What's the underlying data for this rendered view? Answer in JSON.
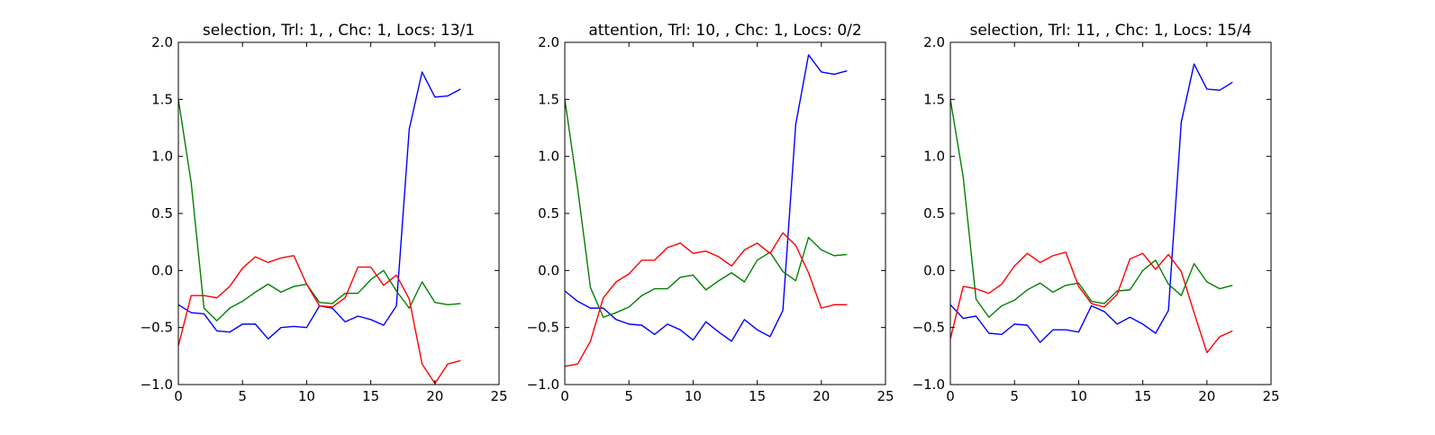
{
  "chart_data": [
    {
      "type": "line",
      "title": "selection, Trl: 1, , Chc: 1, Locs: 13/1",
      "xlim": [
        0,
        25
      ],
      "ylim": [
        -1.0,
        2.0
      ],
      "xticks": [
        "0",
        "5",
        "10",
        "15",
        "20",
        "25"
      ],
      "yticks": [
        "−1.0",
        "−0.5",
        "0.0",
        "0.5",
        "1.0",
        "1.5",
        "2.0"
      ],
      "x": [
        0,
        1,
        2,
        3,
        4,
        5,
        6,
        7,
        8,
        9,
        10,
        11,
        12,
        13,
        14,
        15,
        16,
        17,
        18,
        19,
        20,
        21,
        22
      ],
      "series": [
        {
          "color": "#0000ff",
          "values": [
            -0.3,
            -0.37,
            -0.38,
            -0.53,
            -0.54,
            -0.47,
            -0.47,
            -0.6,
            -0.5,
            -0.49,
            -0.5,
            -0.31,
            -0.33,
            -0.45,
            -0.4,
            -0.43,
            -0.48,
            -0.31,
            1.24,
            1.74,
            1.52,
            1.53,
            1.59
          ]
        },
        {
          "color": "#008000",
          "values": [
            1.5,
            0.77,
            -0.33,
            -0.44,
            -0.33,
            -0.27,
            -0.19,
            -0.12,
            -0.19,
            -0.14,
            -0.12,
            -0.28,
            -0.29,
            -0.2,
            -0.2,
            -0.08,
            0.0,
            -0.18,
            -0.33,
            -0.1,
            -0.28,
            -0.3,
            -0.29
          ]
        },
        {
          "color": "#ff0000",
          "values": [
            -0.66,
            -0.22,
            -0.22,
            -0.24,
            -0.14,
            0.02,
            0.12,
            0.07,
            0.11,
            0.13,
            -0.12,
            -0.31,
            -0.32,
            -0.24,
            0.03,
            0.03,
            -0.13,
            -0.04,
            -0.25,
            -0.82,
            -0.99,
            -0.82,
            -0.79
          ]
        }
      ]
    },
    {
      "type": "line",
      "title": "attention, Trl: 10, , Chc: 1, Locs: 0/2",
      "xlim": [
        0,
        25
      ],
      "ylim": [
        -1.0,
        2.0
      ],
      "xticks": [
        "0",
        "5",
        "10",
        "15",
        "20",
        "25"
      ],
      "yticks": [
        "−1.0",
        "−0.5",
        "0.0",
        "0.5",
        "1.0",
        "1.5",
        "2.0"
      ],
      "x": [
        0,
        1,
        2,
        3,
        4,
        5,
        6,
        7,
        8,
        9,
        10,
        11,
        12,
        13,
        14,
        15,
        16,
        17,
        18,
        19,
        20,
        21,
        22
      ],
      "series": [
        {
          "color": "#0000ff",
          "values": [
            -0.18,
            -0.27,
            -0.33,
            -0.33,
            -0.43,
            -0.47,
            -0.48,
            -0.56,
            -0.47,
            -0.52,
            -0.61,
            -0.45,
            -0.54,
            -0.62,
            -0.43,
            -0.52,
            -0.58,
            -0.35,
            1.28,
            1.89,
            1.74,
            1.72,
            1.75
          ]
        },
        {
          "color": "#008000",
          "values": [
            1.5,
            0.72,
            -0.15,
            -0.41,
            -0.37,
            -0.32,
            -0.22,
            -0.16,
            -0.16,
            -0.06,
            -0.04,
            -0.17,
            -0.09,
            -0.02,
            -0.1,
            0.09,
            0.16,
            -0.01,
            -0.09,
            0.29,
            0.18,
            0.13,
            0.14
          ]
        },
        {
          "color": "#ff0000",
          "values": [
            -0.84,
            -0.82,
            -0.62,
            -0.24,
            -0.1,
            -0.03,
            0.09,
            0.09,
            0.2,
            0.24,
            0.15,
            0.17,
            0.12,
            0.04,
            0.18,
            0.24,
            0.15,
            0.33,
            0.22,
            -0.02,
            -0.33,
            -0.3,
            -0.3
          ]
        }
      ]
    },
    {
      "type": "line",
      "title": "selection, Trl: 11, , Chc: 1, Locs: 15/4",
      "xlim": [
        0,
        25
      ],
      "ylim": [
        -1.0,
        2.0
      ],
      "xticks": [
        "0",
        "5",
        "10",
        "15",
        "20",
        "25"
      ],
      "yticks": [
        "−1.0",
        "−0.5",
        "0.0",
        "0.5",
        "1.0",
        "1.5",
        "2.0"
      ],
      "x": [
        0,
        1,
        2,
        3,
        4,
        5,
        6,
        7,
        8,
        9,
        10,
        11,
        12,
        13,
        14,
        15,
        16,
        17,
        18,
        19,
        20,
        21,
        22
      ],
      "series": [
        {
          "color": "#0000ff",
          "values": [
            -0.3,
            -0.42,
            -0.4,
            -0.55,
            -0.56,
            -0.47,
            -0.48,
            -0.63,
            -0.52,
            -0.52,
            -0.54,
            -0.31,
            -0.36,
            -0.47,
            -0.41,
            -0.47,
            -0.55,
            -0.35,
            1.3,
            1.81,
            1.59,
            1.58,
            1.65
          ]
        },
        {
          "color": "#008000",
          "values": [
            1.5,
            0.82,
            -0.25,
            -0.41,
            -0.31,
            -0.26,
            -0.17,
            -0.11,
            -0.19,
            -0.13,
            -0.11,
            -0.27,
            -0.29,
            -0.18,
            -0.17,
            0.0,
            0.09,
            -0.12,
            -0.22,
            0.06,
            -0.1,
            -0.16,
            -0.13
          ]
        },
        {
          "color": "#ff0000",
          "values": [
            -0.6,
            -0.14,
            -0.16,
            -0.2,
            -0.12,
            0.04,
            0.15,
            0.07,
            0.13,
            0.16,
            -0.14,
            -0.29,
            -0.32,
            -0.21,
            0.1,
            0.15,
            0.01,
            0.14,
            -0.01,
            -0.37,
            -0.72,
            -0.58,
            -0.53
          ]
        }
      ]
    }
  ]
}
